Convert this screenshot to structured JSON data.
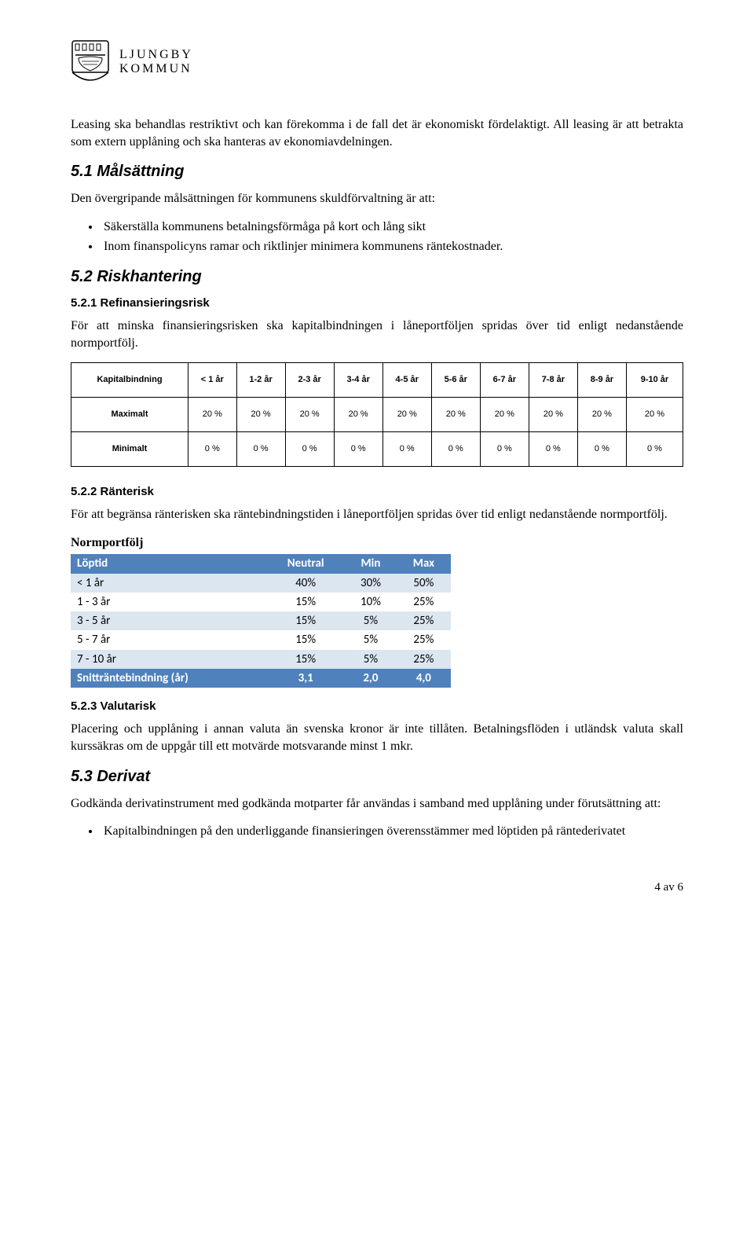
{
  "logo": {
    "line1": "LJUNGBY",
    "line2": "KOMMUN"
  },
  "para_intro": "Leasing ska behandlas restriktivt och kan förekomma i de fall det är ekonomiskt fördelaktigt. All leasing är att betrakta som extern upplåning och ska hanteras av ekonomiavdelningen.",
  "s51": {
    "title": "5.1 Målsättning",
    "lead": "Den övergripande målsättningen för kommunens skuldförvaltning är att:",
    "bullets": [
      "Säkerställa kommunens betalningsförmåga på kort och lång sikt",
      "Inom finanspolicyns ramar och riktlinjer minimera kommunens räntekostnader."
    ]
  },
  "s52": {
    "title": "5.2 Riskhantering"
  },
  "s521": {
    "title": "5.2.1 Refinansieringsrisk",
    "text": "För att minska finansieringsrisken ska kapitalbindningen i låneportföljen spridas över tid enligt nedanstående normportfölj."
  },
  "kap_table": {
    "header": [
      "Kapitalbindning",
      "< 1 år",
      "1-2 år",
      "2-3 år",
      "3-4 år",
      "4-5 år",
      "5-6 år",
      "6-7 år",
      "7-8 år",
      "8-9 år",
      "9-10 år"
    ],
    "rows": [
      {
        "label": "Maximalt",
        "vals": [
          "20 %",
          "20 %",
          "20 %",
          "20 %",
          "20 %",
          "20 %",
          "20 %",
          "20 %",
          "20 %",
          "20 %"
        ]
      },
      {
        "label": "Minimalt",
        "vals": [
          "0 %",
          "0 %",
          "0 %",
          "0 %",
          "0 %",
          "0 %",
          "0 %",
          "0 %",
          "0 %",
          "0 %"
        ]
      }
    ]
  },
  "s522": {
    "title": "5.2.2 Ränterisk",
    "text": "För att begränsa ränterisken ska räntebindningstiden i låneportföljen spridas över tid enligt nedanstående normportfölj.",
    "normlabel": "Normportfölj"
  },
  "norm_table": {
    "header": [
      "Löptid",
      "Neutral",
      "Min",
      "Max"
    ],
    "rows": [
      {
        "band": true,
        "cells": [
          "< 1 år",
          "40%",
          "30%",
          "50%"
        ]
      },
      {
        "band": false,
        "cells": [
          "1 - 3 år",
          "15%",
          "10%",
          "25%"
        ]
      },
      {
        "band": true,
        "cells": [
          "3 - 5 år",
          "15%",
          "5%",
          "25%"
        ]
      },
      {
        "band": false,
        "cells": [
          "5 - 7 år",
          "15%",
          "5%",
          "25%"
        ]
      },
      {
        "band": true,
        "cells": [
          "7 - 10 år",
          "15%",
          "5%",
          "25%"
        ]
      }
    ],
    "footer": [
      "Snitträntebindning (år)",
      "3,1",
      "2,0",
      "4,0"
    ]
  },
  "s523": {
    "title": "5.2.3 Valutarisk",
    "text": "Placering och upplåning i annan valuta än svenska kronor är inte tillåten. Betalningsflöden i utländsk valuta skall kurssäkras om de uppgår till ett motvärde motsvarande minst 1 mkr."
  },
  "s53": {
    "title": "5.3 Derivat",
    "lead": "Godkända derivatinstrument med godkända motparter får användas i samband med upplåning under förutsättning att:",
    "bullets": [
      "Kapitalbindningen på den underliggande finansieringen överensstämmer med löptiden på räntederivatet"
    ]
  },
  "footer": "4 av 6",
  "colors": {
    "header_bg": "#4f81bd",
    "header_fg": "#ffffff",
    "band_bg": "#dce6f1",
    "border": "#000000",
    "text": "#000000",
    "page_bg": "#ffffff"
  }
}
